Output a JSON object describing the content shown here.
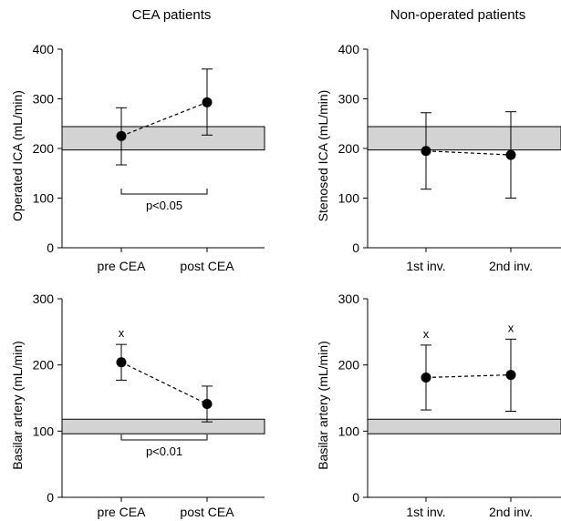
{
  "titles": {
    "left": "CEA patients",
    "right": "Non-operated patients"
  },
  "chart_data": [
    {
      "type": "scatter",
      "subtype": "mean-with-error-bars",
      "panel": "top-left",
      "categories": [
        "pre CEA",
        "post CEA"
      ],
      "values": [
        225,
        293
      ],
      "error_low": [
        167,
        227
      ],
      "error_high": [
        282,
        360
      ],
      "connector": "dashed",
      "reference_band": [
        197,
        244
      ],
      "ylabel": "Operated ICA (mL/min)",
      "ylim": [
        0,
        400
      ],
      "yticks": [
        0,
        100,
        200,
        300,
        400
      ],
      "significance": "p<0.05",
      "markers": [
        "",
        ""
      ]
    },
    {
      "type": "scatter",
      "subtype": "mean-with-error-bars",
      "panel": "top-right",
      "categories": [
        "1st inv.",
        "2nd inv."
      ],
      "values": [
        195,
        187
      ],
      "error_low": [
        118,
        100
      ],
      "error_high": [
        272,
        274
      ],
      "connector": "dashed",
      "reference_band": [
        197,
        244
      ],
      "ylabel": "Stenosed ICA (mL/min)",
      "ylim": [
        0,
        400
      ],
      "yticks": [
        0,
        100,
        200,
        300,
        400
      ],
      "significance": "",
      "markers": [
        "",
        ""
      ]
    },
    {
      "type": "scatter",
      "subtype": "mean-with-error-bars",
      "panel": "bottom-left",
      "categories": [
        "pre CEA",
        "post CEA"
      ],
      "values": [
        204,
        141
      ],
      "error_low": [
        177,
        114
      ],
      "error_high": [
        231,
        168
      ],
      "connector": "dashed",
      "reference_band": [
        96,
        118
      ],
      "ylabel": "Basilar artery (mL/min)",
      "ylim": [
        0,
        300
      ],
      "yticks": [
        0,
        100,
        200,
        300
      ],
      "significance": "p<0.01",
      "markers": [
        "x",
        ""
      ]
    },
    {
      "type": "scatter",
      "subtype": "mean-with-error-bars",
      "panel": "bottom-right",
      "categories": [
        "1st inv.",
        "2nd inv."
      ],
      "values": [
        181,
        185
      ],
      "error_low": [
        132,
        130
      ],
      "error_high": [
        230,
        239
      ],
      "connector": "dashed",
      "reference_band": [
        96,
        118
      ],
      "ylabel": "Basilar artery (mL/min)",
      "ylim": [
        0,
        300
      ],
      "yticks": [
        0,
        100,
        200,
        300
      ],
      "significance": "",
      "markers": [
        "x",
        "x"
      ]
    }
  ]
}
